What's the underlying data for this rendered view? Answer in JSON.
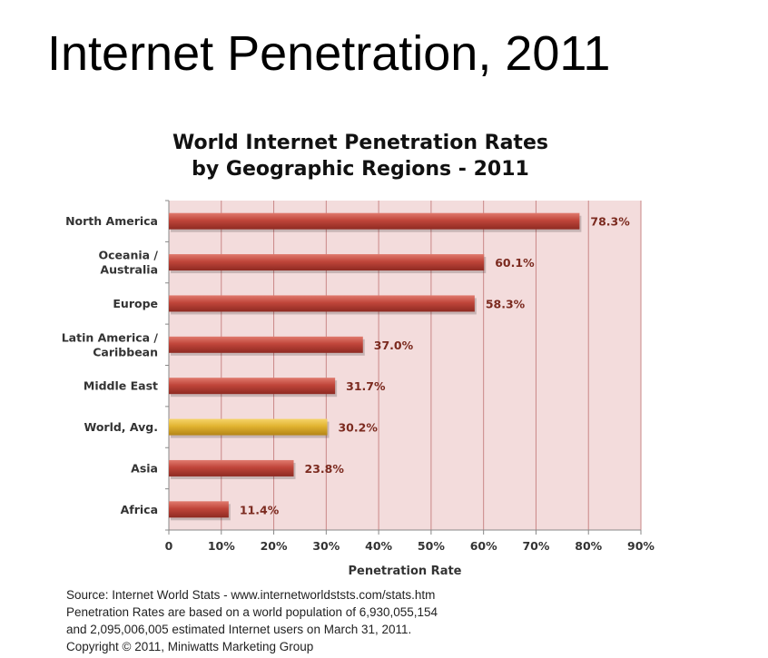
{
  "page": {
    "title": "Internet Penetration, 2011"
  },
  "chart_data": {
    "type": "bar",
    "orientation": "horizontal",
    "title": [
      "World Internet Penetration Rates",
      "by Geographic Regions - 2011"
    ],
    "xlabel": "Penetration Rate",
    "ylabel": "",
    "xlim": [
      0,
      90
    ],
    "ticks": [
      "0",
      "10%",
      "20%",
      "30%",
      "40%",
      "50%",
      "60%",
      "70%",
      "80%",
      "90%"
    ],
    "tick_values": [
      0,
      10,
      20,
      30,
      40,
      50,
      60,
      70,
      80,
      90
    ],
    "grid": true,
    "categories": [
      [
        "North America"
      ],
      [
        "Oceania  /",
        "Australia"
      ],
      [
        "Europe"
      ],
      [
        "Latin America /",
        "Caribbean"
      ],
      [
        "Middle East"
      ],
      [
        "World, Avg."
      ],
      [
        "Asia"
      ],
      [
        "Africa"
      ]
    ],
    "values": [
      78.3,
      60.1,
      58.3,
      37.0,
      31.7,
      30.2,
      23.8,
      11.4
    ],
    "value_labels": [
      "78.3%",
      "60.1%",
      "58.3%",
      "37.0%",
      "31.7%",
      "30.2%",
      "23.8%",
      "11.4%"
    ],
    "colors": {
      "bar": "#b83a2e",
      "highlight_bar": "#e1b330",
      "plot_background": "#f3dcdc",
      "grid": "#c98787",
      "label_text": "#7b2a1f"
    },
    "highlight_index": 5
  },
  "source": {
    "lines": [
      "Source: Internet World Stats - www.internetworldststs.com/stats.htm",
      "Penetration Rates are based on a world population of 6,930,055,154",
      "and 2,095,006,005 estimated Internet users on March 31, 2011.",
      "Copyright © 2011, Miniwatts Marketing Group"
    ]
  }
}
